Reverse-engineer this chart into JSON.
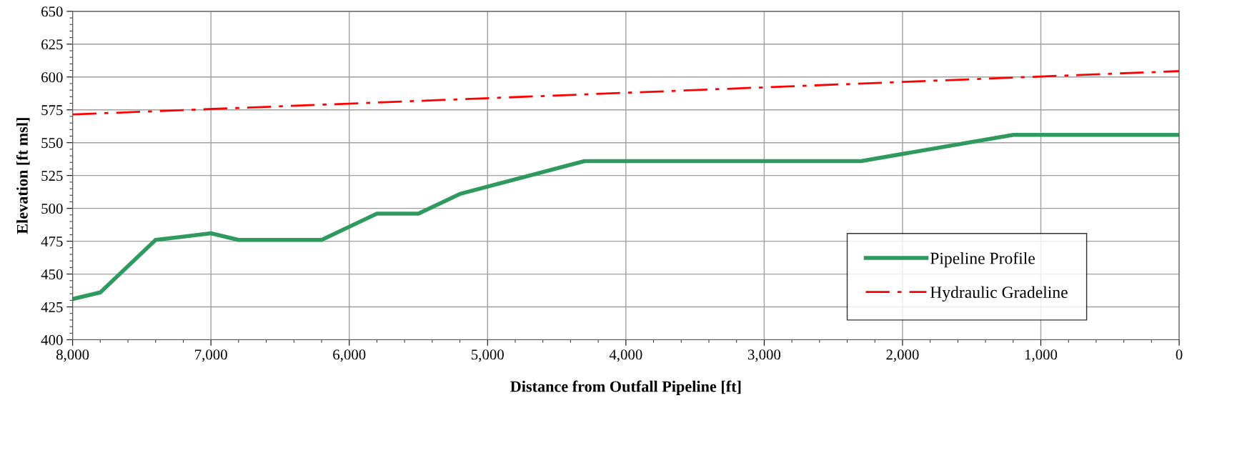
{
  "chart_data": {
    "type": "line",
    "xlabel": "Distance from Outfall Pipeline [ft]",
    "ylabel": "Elevation [ft msl]",
    "xlim": [
      8000,
      0
    ],
    "xticks": [
      {
        "value": 8000,
        "label": "8,000"
      },
      {
        "value": 7000,
        "label": "7,000"
      },
      {
        "value": 6000,
        "label": "6,000"
      },
      {
        "value": 5000,
        "label": "5,000"
      },
      {
        "value": 4000,
        "label": "4,000"
      },
      {
        "value": 3000,
        "label": "3,000"
      },
      {
        "value": 2000,
        "label": "2,000"
      },
      {
        "value": 1000,
        "label": "1,000"
      },
      0
    ],
    "ylim": [
      400,
      650
    ],
    "yticks": [
      400,
      425,
      450,
      475,
      500,
      525,
      550,
      575,
      600,
      625,
      650
    ],
    "grid": true,
    "legend": "bottom right",
    "series": [
      {
        "name": "Pipeline Profile",
        "color": "#2e9a5e",
        "line_style": "solid",
        "x": [
          8000,
          7800,
          7400,
          7000,
          6800,
          6200,
          5800,
          5500,
          5200,
          4300,
          2300,
          1200,
          0
        ],
        "values": [
          431,
          436,
          476,
          481,
          476,
          476,
          496,
          496,
          511,
          536,
          536,
          556,
          556
        ]
      },
      {
        "name": "Hydraulic Gradeline",
        "color": "#ff0000",
        "line_style": "dashdot",
        "x": [
          8000,
          4000,
          0
        ],
        "values": [
          571.5,
          588,
          604.5
        ]
      }
    ]
  }
}
